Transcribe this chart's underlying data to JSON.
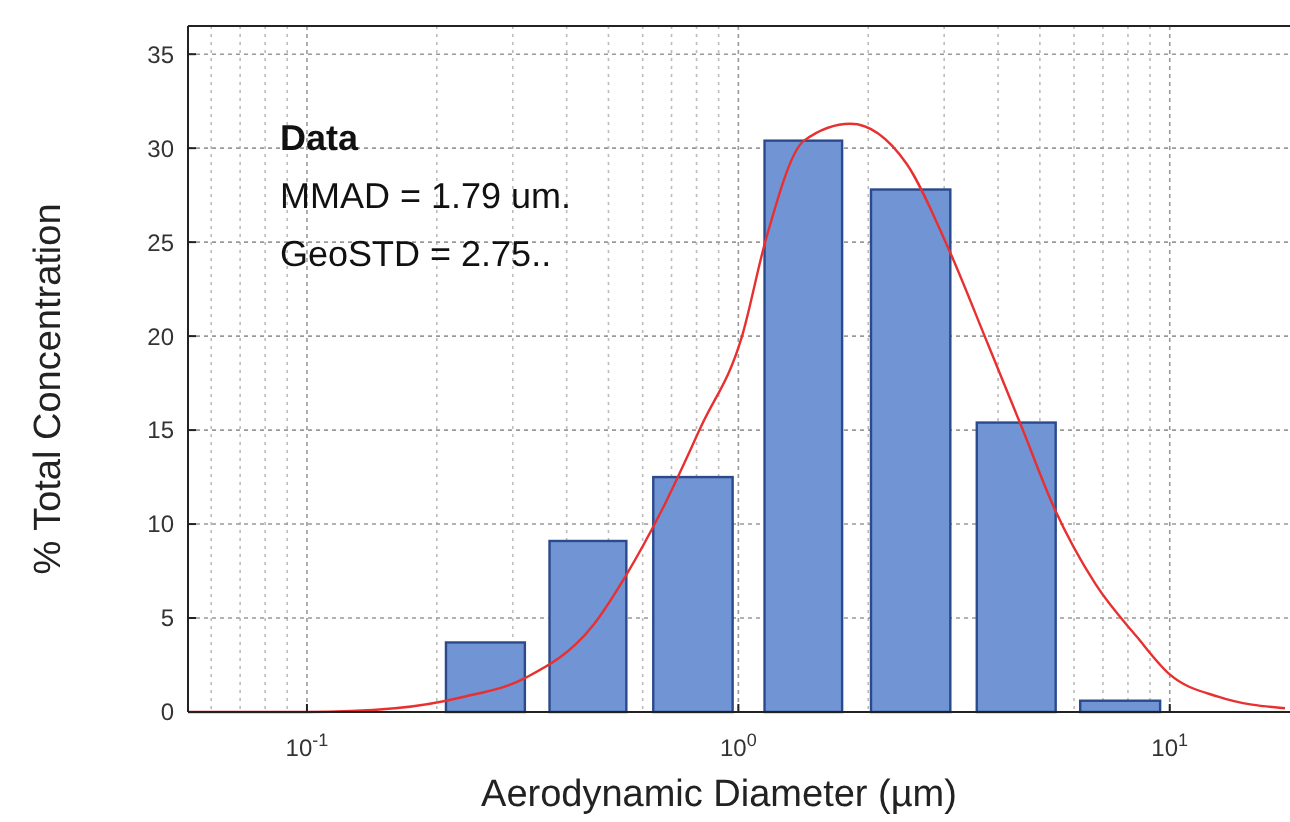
{
  "chart_data": {
    "type": "histogram",
    "xlabel": "Aerodynamic Diameter (µm)",
    "ylabel": "%  Total Concentration",
    "log": "x",
    "grid": true,
    "xlim": [
      0.053,
      19
    ],
    "xticks": [
      {
        "value": 0.1,
        "label": "10$^{-1}$"
      },
      {
        "value": 1,
        "label": "10$^{0}$"
      },
      {
        "value": 10,
        "label": "10$^{1}$"
      }
    ],
    "ylim": [
      0,
      36.5
    ],
    "yticks": [
      0,
      5,
      10,
      15,
      20,
      25,
      30,
      35
    ],
    "annotations": [
      "Data",
      "MMAD = 1.79 um.",
      "GeoSTD = 2.75.."
    ],
    "series": [
      {
        "color": "#7094d4",
        "bins": [
          0.21,
          0.32,
          0.365,
          0.55,
          0.635,
          0.97,
          1.15,
          1.74,
          2.03,
          3.1,
          3.57,
          5.44,
          6.2,
          9.5
        ],
        "values": [
          3.7,
          null,
          9.1,
          null,
          12.5,
          null,
          30.4,
          null,
          27.8,
          null,
          15.4,
          null,
          0.6
        ]
      },
      {
        "type": "line",
        "color": "#e83030",
        "x": [
          0.053,
          0.1,
          0.16,
          0.23,
          0.32,
          0.46,
          0.55,
          0.66,
          0.82,
          1.02,
          1.16,
          1.42,
          1.82,
          2.45,
          3.05,
          3.8,
          4.53,
          5.41,
          6.73,
          8.39,
          10,
          13,
          18.5
        ],
        "values": [
          0,
          0,
          0.2,
          0.8,
          1.8,
          4.6,
          7.3,
          10.6,
          15.2,
          20,
          25.2,
          30.4,
          31.3,
          29.2,
          24.8,
          19.5,
          15.2,
          10.8,
          6.8,
          4,
          2,
          0.8,
          0.2
        ]
      }
    ]
  }
}
